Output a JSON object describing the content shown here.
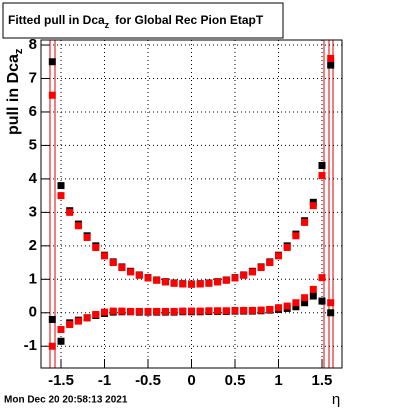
{
  "chart_data": {
    "type": "scatter",
    "title": {
      "main": "Fitted pull in Dca",
      "sub": "z",
      "rest": "for Global Rec Pion EtapT"
    },
    "y_label": {
      "main": "pull in Dca",
      "sub": "z"
    },
    "x_label": "η",
    "timestamp": "Mon Dec 20 20:58:13 2021",
    "x": [
      -1.6,
      -1.5,
      -1.4,
      -1.3,
      -1.2,
      -1.1,
      -1.0,
      -0.9,
      -0.8,
      -0.7,
      -0.6,
      -0.5,
      -0.4,
      -0.3,
      -0.2,
      -0.1,
      0,
      0.1,
      0.2,
      0.3,
      0.4,
      0.5,
      0.6,
      0.7,
      0.8,
      0.9,
      1.0,
      1.1,
      1.2,
      1.3,
      1.4,
      1.5,
      1.6
    ],
    "series": [
      {
        "color": "#000000",
        "values": [
          7.5,
          3.8,
          3.05,
          2.65,
          2.3,
          2.0,
          1.72,
          1.52,
          1.37,
          1.24,
          1.13,
          1.05,
          0.98,
          0.93,
          0.89,
          0.87,
          0.86,
          0.87,
          0.89,
          0.93,
          0.98,
          1.05,
          1.13,
          1.24,
          1.37,
          1.52,
          1.72,
          2.0,
          2.35,
          2.75,
          3.3,
          4.4,
          7.4
        ]
      },
      {
        "color": "#ff0000",
        "values": [
          6.5,
          3.5,
          3.0,
          2.6,
          2.25,
          1.95,
          1.7,
          1.5,
          1.35,
          1.22,
          1.12,
          1.04,
          0.97,
          0.92,
          0.88,
          0.86,
          0.85,
          0.86,
          0.88,
          0.92,
          0.97,
          1.04,
          1.12,
          1.22,
          1.35,
          1.5,
          1.7,
          1.95,
          2.3,
          2.7,
          3.2,
          4.1,
          7.6
        ]
      },
      {
        "color": "#000000",
        "values": [
          -0.2,
          -0.85,
          -0.3,
          -0.22,
          -0.15,
          -0.08,
          -0.02,
          0.02,
          0.03,
          0.03,
          0.02,
          0.02,
          0.02,
          0.02,
          0.02,
          0.03,
          0.03,
          0.03,
          0.04,
          0.04,
          0.04,
          0.05,
          0.05,
          0.05,
          0.06,
          0.08,
          0.1,
          0.13,
          0.18,
          0.3,
          0.5,
          0.35,
          0.0
        ]
      },
      {
        "color": "#ff0000",
        "values": [
          -1.0,
          -0.5,
          -0.35,
          -0.25,
          -0.15,
          -0.05,
          0.02,
          0.05,
          0.05,
          0.04,
          0.04,
          0.04,
          0.04,
          0.04,
          0.04,
          0.05,
          0.05,
          0.05,
          0.06,
          0.06,
          0.06,
          0.07,
          0.07,
          0.07,
          0.08,
          0.1,
          0.15,
          0.2,
          0.3,
          0.45,
          0.7,
          1.05,
          0.3
        ]
      }
    ],
    "xlim": [
      -1.73,
      1.73
    ],
    "ylim": [
      -1.65,
      8.15
    ],
    "xticks": [
      -1.5,
      -1,
      -0.5,
      0,
      0.5,
      1,
      1.5
    ],
    "yticks": [
      -1,
      0,
      1,
      2,
      3,
      4,
      5,
      6,
      7,
      8
    ],
    "grid": true
  }
}
